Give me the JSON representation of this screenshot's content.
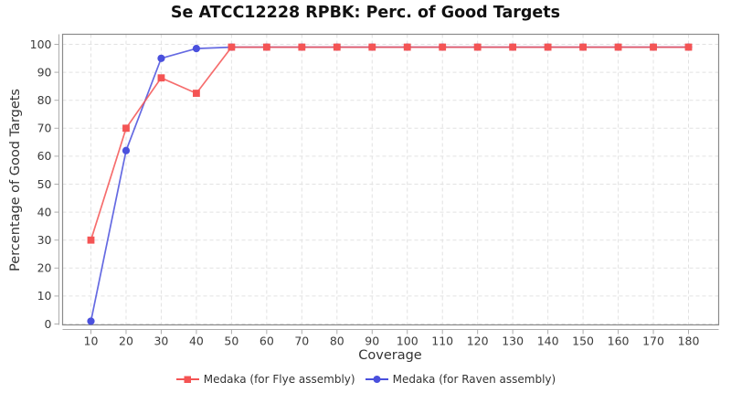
{
  "title": "Se ATCC12228 RPBK: Perc. of Good Targets",
  "chart_data": {
    "type": "line",
    "title": "Se ATCC12228 RPBK: Perc. of Good Targets",
    "xlabel": "Coverage",
    "ylabel": "Percentage of Good Targets",
    "x": [
      10,
      20,
      30,
      40,
      50,
      60,
      70,
      80,
      90,
      100,
      110,
      120,
      130,
      140,
      150,
      160,
      170,
      180
    ],
    "series": [
      {
        "name": "Medaka (for Flye assembly)",
        "marker": "square",
        "color": "#f45454",
        "values": [
          30,
          70,
          88,
          82.5,
          99,
          99,
          99,
          99,
          99,
          99,
          99,
          99,
          99,
          99,
          99,
          99,
          99,
          99
        ]
      },
      {
        "name": "Medaka (for Raven assembly)",
        "marker": "circle",
        "color": "#4a50dd",
        "values": [
          1,
          62,
          95,
          98.5,
          99,
          99,
          99,
          99,
          99,
          99,
          99,
          99,
          99,
          99,
          99,
          99,
          99,
          99
        ]
      }
    ],
    "xticks": [
      10,
      20,
      30,
      40,
      50,
      60,
      70,
      80,
      90,
      100,
      110,
      120,
      130,
      140,
      150,
      160,
      170,
      180
    ],
    "yticks": [
      0,
      10,
      20,
      30,
      40,
      50,
      60,
      70,
      80,
      90,
      100
    ],
    "ylim": [
      0,
      100
    ],
    "grid": "dashed",
    "legend_position": "bottom"
  },
  "colors": {
    "grid": "#e2e2e2",
    "border": "#8a8a8a",
    "axis": "#adadad",
    "tick_label": "#3c3c3c",
    "title_text": "#111111"
  }
}
